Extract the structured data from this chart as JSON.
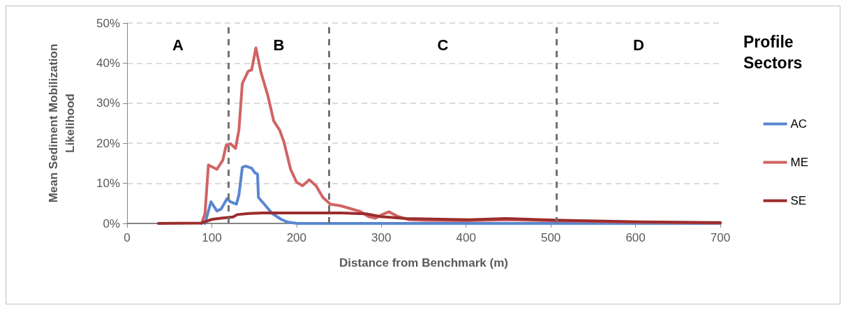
{
  "chart_data": {
    "type": "line",
    "xlabel": "Distance from Benchmark (m)",
    "ylabel": "Mean Sediment Mobilization Likelihood",
    "legend_title": "Profile Sectors",
    "legend": "right",
    "grid": "y",
    "marker": "none",
    "line_style": "solid",
    "xlim": [
      0,
      700
    ],
    "xticks": [
      0,
      100,
      200,
      300,
      400,
      500,
      600,
      700
    ],
    "ylim": [
      0,
      50
    ],
    "yticks": [
      {
        "value": 0,
        "label": "0%"
      },
      {
        "value": 10,
        "label": "10%"
      },
      {
        "value": 20,
        "label": "20%"
      },
      {
        "value": 30,
        "label": "30%"
      },
      {
        "value": 40,
        "label": "40%"
      },
      {
        "value": 50,
        "label": "50%"
      }
    ],
    "ref_lines": [
      {
        "axis": "x",
        "value": 120,
        "color": "#767171",
        "line_style": "dashed"
      },
      {
        "axis": "x",
        "value": 238,
        "color": "#767171",
        "line_style": "dashed"
      },
      {
        "axis": "x",
        "value": 507,
        "color": "#767171",
        "line_style": "dashed"
      }
    ],
    "annotations": [
      "A",
      "B",
      "C",
      "D"
    ],
    "series": [
      {
        "name": "AC",
        "color": "#5a86cf",
        "x": [
          92,
          99,
          106,
          111,
          118,
          122,
          129,
          132,
          136,
          140,
          147,
          151,
          154,
          155,
          162,
          171,
          182,
          190,
          201,
          300,
          400,
          500,
          600,
          700
        ],
        "values": [
          0,
          5.4,
          3.1,
          3.6,
          6.2,
          5.4,
          4.8,
          7.1,
          14,
          14.3,
          13.8,
          12.6,
          12.3,
          6.5,
          4.8,
          2.5,
          1,
          0.3,
          0,
          0,
          0,
          0,
          0,
          0
        ]
      },
      {
        "name": "ME",
        "color": "#d06464",
        "x": [
          88,
          92,
          96,
          106,
          113,
          117,
          122,
          128,
          132,
          136,
          143,
          147,
          152,
          158,
          166,
          173,
          180,
          185,
          193,
          200,
          207,
          215,
          223,
          231,
          240,
          252,
          275,
          285,
          293,
          300,
          309,
          320,
          333,
          350,
          400,
          450,
          500,
          600,
          700
        ],
        "values": [
          0,
          2.5,
          14.6,
          13.5,
          15.8,
          19.5,
          19.9,
          18.7,
          23.3,
          34.9,
          38,
          38.3,
          43.8,
          37.7,
          32,
          25.6,
          23.3,
          20.4,
          13.5,
          10.3,
          9.4,
          10.9,
          9.4,
          6.5,
          4.8,
          4.4,
          3,
          1.7,
          1.3,
          2.1,
          2.9,
          1.7,
          0.9,
          0.8,
          0.7,
          0.9,
          0.7,
          0.3,
          0.1
        ]
      },
      {
        "name": "SE",
        "color": "#9b2d2d",
        "x": [
          37,
          88,
          100,
          111,
          125,
          130,
          144,
          160,
          182,
          253,
          282,
          299,
          330,
          403,
          447,
          513,
          604,
          700
        ],
        "values": [
          0,
          0.1,
          1,
          1.3,
          1.6,
          2.2,
          2.5,
          2.6,
          2.6,
          2.6,
          2.4,
          1.7,
          1.2,
          0.9,
          1.2,
          0.8,
          0.4,
          0.2
        ]
      }
    ]
  }
}
